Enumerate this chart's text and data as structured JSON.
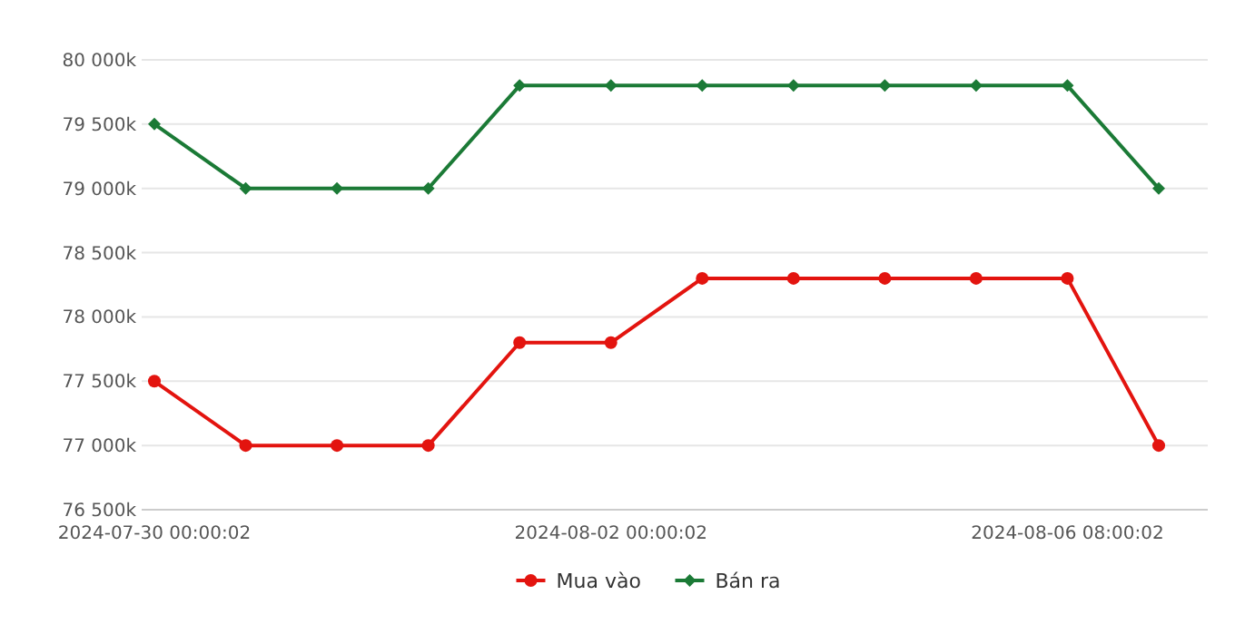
{
  "chart_data": {
    "type": "line",
    "categories": [
      "2024-07-30 00:00:02",
      null,
      null,
      null,
      null,
      "2024-08-02 00:00:02",
      null,
      null,
      null,
      null,
      "2024-08-06 08:00:02",
      null
    ],
    "series": [
      {
        "name": "Mua vào",
        "color": "#e3140f",
        "marker": "circle",
        "values": [
          77500,
          77000,
          77000,
          77000,
          77800,
          77800,
          78300,
          78300,
          78300,
          78300,
          78300,
          77000
        ]
      },
      {
        "name": "Bán ra",
        "color": "#1b7a36",
        "marker": "diamond",
        "values": [
          79500,
          79000,
          79000,
          79000,
          79800,
          79800,
          79800,
          79800,
          79800,
          79800,
          79800,
          79000
        ]
      }
    ],
    "ylim": [
      76500,
      80000
    ],
    "yticks": [
      {
        "value": 76500,
        "label": "76 500k"
      },
      {
        "value": 77000,
        "label": "77 000k"
      },
      {
        "value": 77500,
        "label": "77 500k"
      },
      {
        "value": 78000,
        "label": "78 000k"
      },
      {
        "value": 78500,
        "label": "78 500k"
      },
      {
        "value": 79000,
        "label": "79 000k"
      },
      {
        "value": 79500,
        "label": "79 500k"
      },
      {
        "value": 80000,
        "label": "80 000k"
      }
    ],
    "grid": "y",
    "legend": "bottom",
    "line_style": "solid"
  }
}
